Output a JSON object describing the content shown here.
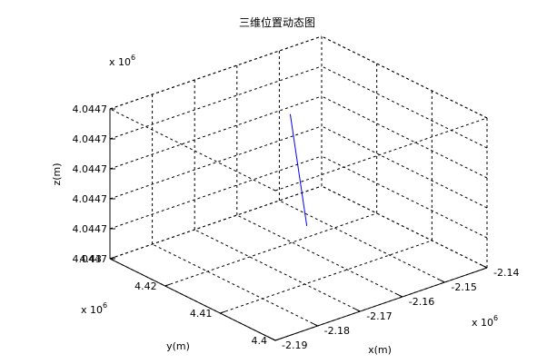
{
  "window": {
    "title": "三维位置动态图"
  },
  "chart_data": {
    "type": "line3d",
    "title": "三维位置动态图",
    "xlabel": "x(m)",
    "ylabel": "y(m)",
    "zlabel": "z(m)",
    "x_exponent_label": "x 10",
    "x_exponent_power": "6",
    "y_exponent_label": "x 10",
    "y_exponent_power": "6",
    "z_exponent_label": "x 10",
    "z_exponent_power": "6",
    "x_ticks": [
      "-2.19",
      "-2.18",
      "-2.17",
      "-2.16",
      "-2.15",
      "-2.14"
    ],
    "y_ticks": [
      "4.4",
      "4.41",
      "4.42",
      "4.43"
    ],
    "z_ticks": [
      "4.0447",
      "4.0447",
      "4.0447",
      "4.0447",
      "4.0447",
      "4.0447"
    ],
    "xlim": [
      -2.19,
      -2.14
    ],
    "ylim": [
      4.4,
      4.43
    ],
    "zlim": [
      0,
      5
    ],
    "grid": true,
    "box": true,
    "line_color": "#0000ff",
    "series": [
      {
        "x": [
          -2.1594,
          -2.1616
        ],
        "y": [
          4.4208,
          4.4161
        ],
        "z": [
          4.18,
          0.98
        ]
      }
    ]
  }
}
